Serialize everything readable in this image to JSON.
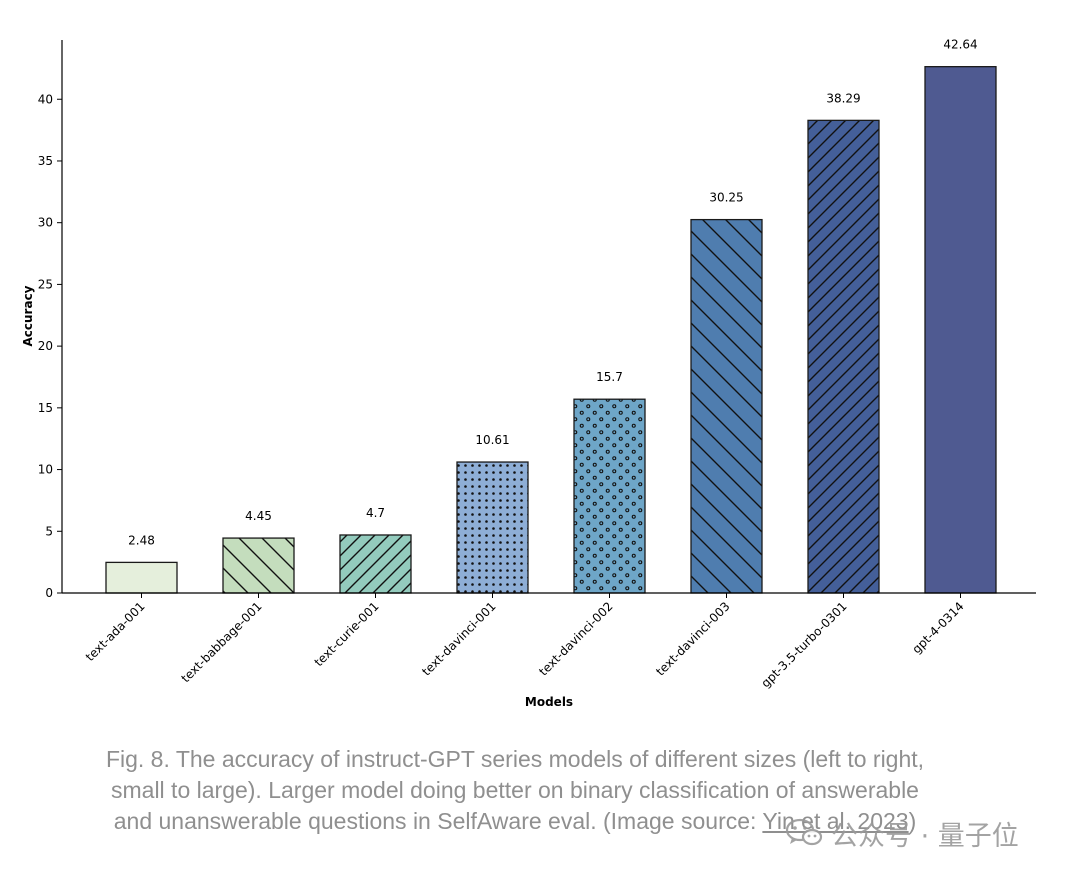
{
  "chart_data": {
    "type": "bar",
    "categories": [
      "text-ada-001",
      "text-babbage-001",
      "text-curie-001",
      "text-davinci-001",
      "text-davinci-002",
      "text-davinci-003",
      "gpt-3.5-turbo-0301",
      "gpt-4-0314"
    ],
    "values": [
      2.48,
      4.45,
      4.7,
      10.61,
      15.7,
      30.25,
      38.29,
      42.64
    ],
    "value_labels": [
      "2.48",
      "4.45",
      "4.7",
      "10.61",
      "15.7",
      "30.25",
      "38.29",
      "42.64"
    ],
    "colors": [
      "#e5efdc",
      "#c4ddbd",
      "#93cbbd",
      "#8eaed6",
      "#6ea6c8",
      "#4f7daf",
      "#445f99",
      "#4f5a91"
    ],
    "hatches": [
      "none",
      "backslash",
      "slash",
      "small-dots",
      "dots",
      "backslash",
      "slash",
      "none"
    ],
    "xlabel": "Models",
    "ylabel": "Accuracy",
    "ylim": [
      0,
      44.8
    ],
    "yticks": [
      0,
      5,
      10,
      15,
      20,
      25,
      30,
      35,
      40
    ],
    "grid": false,
    "legend": "none"
  },
  "caption": {
    "text": "Fig. 8. The accuracy of instruct-GPT series models of different sizes (left to right, small to large). Larger model doing better on binary classification of answerable and unanswerable questions in SelfAware eval. (Image source: ",
    "link_text": "Yin et al. 2023",
    "tail": ")"
  },
  "watermark": {
    "icon": "wechat-icon",
    "text": "公众号 · 量子位"
  }
}
